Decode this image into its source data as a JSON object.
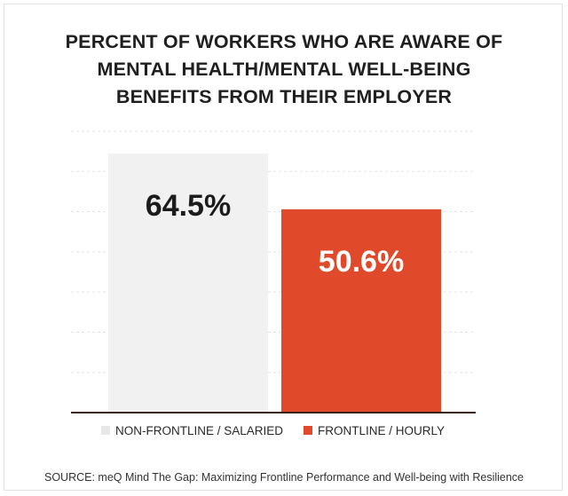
{
  "chart_data": {
    "type": "bar",
    "title_lines": [
      "PERCENT OF WORKERS WHO ARE AWARE OF",
      "MENTAL HEALTH/MENTAL WELL-BEING",
      "BENEFITS FROM THEIR EMPLOYER"
    ],
    "categories": [
      "NON-FRONTLINE / SALARIED",
      "FRONTLINE / HOURLY"
    ],
    "values": [
      64.5,
      50.6
    ],
    "data_labels": [
      "64.5%",
      "50.6%"
    ],
    "colors": [
      "#f1f1f1",
      "#e04a2a"
    ],
    "label_colors": [
      "#1c1c1c",
      "#ffffff"
    ],
    "ylim": [
      0,
      70
    ],
    "grid": true,
    "legend": "bottom",
    "source": "SOURCE: meQ Mind The Gap: Maximizing Frontline Performance and Well-being with Resilience"
  }
}
